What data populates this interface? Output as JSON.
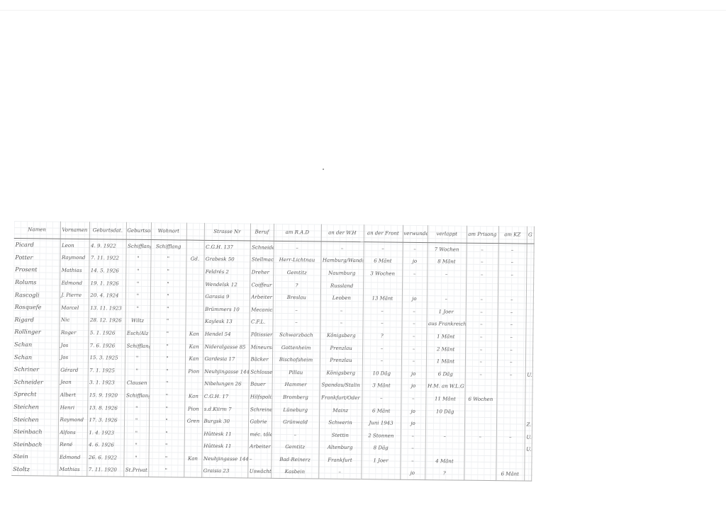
{
  "headers": [
    "Namen",
    "Vornamen",
    "Geburtsdat.",
    "Geburtsort",
    "Wohnort",
    "",
    "Strasse Nr",
    "Beruf",
    "am R.A.D",
    "an der W.H",
    "an der Front",
    "verwundet",
    "verlappt",
    "am Prisong",
    "am KZ",
    "G"
  ],
  "rows": [
    [
      "Picard",
      "Leon",
      "4. 9. 1922",
      "Schifflang",
      "Schifflang",
      "",
      "C.G.H. 137",
      "Schneider",
      "–",
      "–",
      "–",
      "–",
      "7 Wochen",
      "–",
      "–",
      ""
    ],
    [
      "Potter",
      "Raymond",
      "7. 11. 1922",
      "\"",
      "\"",
      "Gd.",
      "Grabesk 50",
      "Stellmacher",
      "Herr-Lichtnau",
      "Hamburg/Wandsbek",
      "6 Mänt",
      "jo",
      "8 Mänt",
      "–",
      "–",
      ""
    ],
    [
      "Prosent",
      "Mathias",
      "14. 5. 1926",
      "\"",
      "\"",
      "",
      "Feldrés 2",
      "Dreher",
      "Gemtitz",
      "Naumburg",
      "3 Wochen",
      "–",
      "–",
      "–",
      "–",
      ""
    ],
    [
      "Rolums",
      "Edmond",
      "19. 1. 1926",
      "\"",
      "\"",
      "",
      "Wendelsk 12",
      "Coiffeur",
      "?",
      "Russland",
      "",
      "",
      "",
      "",
      "",
      ""
    ],
    [
      "Rascogli",
      "J. Pierre",
      "20. 4. 1924",
      "\"",
      "\"",
      "",
      "Garasia 9",
      "Arbeiter",
      "Breslau",
      "Leoben",
      "13 Mänt",
      "jo",
      "–",
      "–",
      "–",
      ""
    ],
    [
      "Rosquefe",
      "Marcel",
      "13. 11. 1923",
      "\"",
      "\"",
      "",
      "Brümmers 10",
      "Mecanicien",
      "–",
      "–",
      "–",
      "–",
      "1 Joer",
      "–",
      "–",
      ""
    ],
    [
      "Rigard",
      "Nic",
      "28. 12. 1926",
      "Wiltz",
      "\"",
      "",
      "Kaylesk 13",
      "C.F.L.",
      "–",
      "–",
      "–",
      "–",
      "aus Frankreich",
      "–",
      "–",
      ""
    ],
    [
      "Rollinger",
      "Roger",
      "5. 1. 1926",
      "Esch/Alz",
      "\"",
      "Kan",
      "Hendel 54",
      "Pâtissier",
      "Schwarzbach",
      "Königsberg",
      "?",
      "–",
      "1 Mänt",
      "–",
      "–",
      ""
    ],
    [
      "Schan",
      "Jos",
      "7. 6. 1926",
      "Schifflang",
      "\"",
      "Kan",
      "Nideralgasse 85",
      "Mineurshüd.",
      "Gottenheim",
      "Prenzlau",
      "–",
      "–",
      "2 Mänt",
      "–",
      "–",
      ""
    ],
    [
      "Schan",
      "Jos",
      "15. 3. 1925",
      "\"",
      "\"",
      "Kan",
      "Gardesia 17",
      "Bäcker",
      "Bischofsheim",
      "Prenzlau",
      "–",
      "–",
      "1 Mänt",
      "–",
      "–",
      ""
    ],
    [
      "Schriner",
      "Gérard",
      "7. 1. 1925",
      "\"",
      "\"",
      "Pion",
      "Neuhjingasse 144",
      "Schlosser",
      "Pillau",
      "Königsberg",
      "10 Däg",
      "jo",
      "6 Däg",
      "–",
      "–",
      "U."
    ],
    [
      "Schneider",
      "Jean",
      "3. 1. 1923",
      "Clausen",
      "\"",
      "",
      "Nibelungen 26",
      "Bauer",
      "Hammer",
      "Spandau/Stalin",
      "3 Mänt",
      "jo",
      "H.M. an W.L.G",
      "",
      "",
      ""
    ],
    [
      "Sprecht",
      "Albert",
      "15. 9. 1920",
      "Schifflang",
      "\"",
      "Kan",
      "C.G.H. 17",
      "Hilfspolizist",
      "Bromberg",
      "Frankfurt/Oder",
      "–",
      "–",
      "11 Mänt",
      "6 Wochen",
      "",
      ""
    ],
    [
      "Steichen",
      "Henri",
      "13. 8. 1926",
      "\"",
      "\"",
      "Pion",
      "s.d.Kiirm 7",
      "Schreiner",
      "Lüneburg",
      "Mainz",
      "6 Mänt",
      "jo",
      "10 Däg",
      "",
      "",
      ""
    ],
    [
      "Steichen",
      "Raymond",
      "17. 3. 1926",
      "\"",
      "\"",
      "Gren",
      "Burgsk 30",
      "Gabrie",
      "Grünwald",
      "Schwerin",
      "Juni 1943",
      "jo",
      "",
      "",
      "",
      "Z."
    ],
    [
      "Steinbach",
      "Alfons",
      "1. 4. 1923",
      "\"",
      "\"",
      "",
      "Hüttesk 11",
      "méc. tôles",
      "–",
      "Stettin",
      "2 Stonnen",
      "–",
      "–",
      "–",
      "–",
      "U."
    ],
    [
      "Steinbach",
      "René",
      "4. 6. 1926",
      "\"",
      "\"",
      "",
      "Hüttesk 11",
      "Arbeiter",
      "Gemtitz",
      "Altenburg",
      "8 Däg",
      "–",
      "",
      "",
      "",
      "U."
    ],
    [
      "Stein",
      "Edmond",
      "26. 6. 1922",
      "\"",
      "\"",
      "Kan",
      "Neuhjingasse 144",
      "–",
      "Bad-Reinerz",
      "Frankfurt",
      "1 Joer",
      "–",
      "4 Mänt",
      "",
      "",
      ""
    ],
    [
      "Stoltz",
      "Mathias",
      "7. 11. 1920",
      "St.Privat (F)",
      "\"",
      "",
      "Graisia 23",
      "Uswächter",
      "Kasbein",
      "–",
      "",
      "jo",
      "?",
      "",
      "6 Mänt",
      ""
    ]
  ]
}
